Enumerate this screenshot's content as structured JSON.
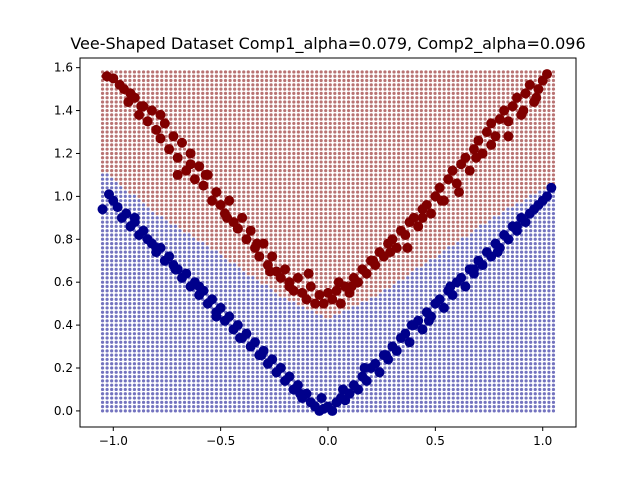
{
  "chart_data": {
    "type": "scatter",
    "title": "Vee-Shaped Dataset Comp1_alpha=0.079, Comp2_alpha=0.096",
    "xlabel": "",
    "ylabel": "",
    "xlim": [
      -1.155,
      1.155
    ],
    "ylim": [
      -0.075,
      1.645
    ],
    "xticks": [
      -1.0,
      -0.5,
      0.0,
      0.5,
      1.0
    ],
    "xtick_labels": [
      "−1.0",
      "−0.5",
      "0.0",
      "0.5",
      "1.0"
    ],
    "yticks": [
      0.0,
      0.2,
      0.4,
      0.6,
      0.8,
      1.0,
      1.2,
      1.4,
      1.6
    ],
    "ytick_labels": [
      "0.0",
      "0.2",
      "0.4",
      "0.6",
      "0.8",
      "1.0",
      "1.2",
      "1.4",
      "1.6"
    ],
    "grid": false,
    "legend": "none",
    "colors": {
      "class_high": "#800000",
      "class_low": "#00008b"
    },
    "decision_boundary": {
      "description_points_x": [
        -1.05,
        -0.8,
        -0.5,
        -0.2,
        0.0,
        0.2,
        0.5,
        0.8,
        1.05
      ],
      "description_points_y": [
        1.12,
        0.92,
        0.73,
        0.52,
        0.43,
        0.52,
        0.72,
        0.92,
        1.06
      ]
    },
    "series": [
      {
        "class": "high",
        "x": [
          -1.03,
          -1.0,
          -0.97,
          -0.95,
          -0.93,
          -0.9,
          -0.88,
          -0.86,
          -0.84,
          -0.82,
          -0.8,
          -0.78,
          -0.76,
          -0.74,
          -0.72,
          -0.7,
          -0.68,
          -0.66,
          -0.64,
          -0.62,
          -0.6,
          -0.58,
          -0.56,
          -0.54,
          -0.52,
          -0.5,
          -0.48,
          -0.46,
          -0.44,
          -0.42,
          -0.4,
          -0.38,
          -0.36,
          -0.34,
          -0.32,
          -0.3,
          -0.28,
          -0.26,
          -0.24,
          -0.22,
          -0.2,
          -0.18,
          -0.16,
          -0.14,
          -0.12,
          -0.1,
          -0.08,
          -0.06,
          -0.04,
          -0.02,
          0.0,
          0.02,
          0.04,
          0.06,
          0.08,
          0.1,
          0.12,
          0.14,
          0.16,
          0.18,
          0.2,
          0.22,
          0.24,
          0.26,
          0.28,
          0.3,
          0.32,
          0.34,
          0.36,
          0.38,
          0.4,
          0.42,
          0.44,
          0.46,
          0.48,
          0.5,
          0.52,
          0.54,
          0.56,
          0.58,
          0.6,
          0.62,
          0.64,
          0.66,
          0.68,
          0.7,
          0.72,
          0.74,
          0.76,
          0.78,
          0.8,
          0.82,
          0.84,
          0.86,
          0.88,
          0.9,
          0.92,
          0.94,
          0.96,
          0.98,
          1.0,
          1.02,
          -0.92,
          -0.87,
          -0.78,
          -0.7,
          -0.64,
          -0.57,
          -0.47,
          -0.42,
          -0.33,
          -0.27,
          -0.18,
          -0.09,
          0.05,
          0.11,
          0.21,
          0.29,
          0.37,
          0.44,
          0.53,
          0.61,
          0.69,
          0.76,
          0.84,
          0.91,
          0.97
        ],
        "y": [
          1.56,
          1.55,
          1.52,
          1.5,
          1.44,
          1.46,
          1.38,
          1.42,
          1.35,
          1.4,
          1.31,
          1.27,
          1.34,
          1.22,
          1.28,
          1.18,
          1.25,
          1.12,
          1.2,
          1.08,
          1.14,
          1.05,
          1.1,
          0.98,
          1.02,
          0.96,
          0.92,
          0.98,
          0.88,
          0.85,
          0.9,
          0.8,
          0.84,
          0.76,
          0.72,
          0.78,
          0.68,
          0.72,
          0.65,
          0.62,
          0.66,
          0.6,
          0.56,
          0.62,
          0.55,
          0.52,
          0.58,
          0.5,
          0.54,
          0.5,
          0.55,
          0.52,
          0.56,
          0.5,
          0.58,
          0.55,
          0.62,
          0.6,
          0.66,
          0.64,
          0.7,
          0.68,
          0.74,
          0.72,
          0.78,
          0.8,
          0.76,
          0.84,
          0.82,
          0.88,
          0.9,
          0.86,
          0.94,
          0.96,
          0.92,
          1.0,
          1.04,
          0.98,
          1.08,
          1.12,
          1.06,
          1.15,
          1.18,
          1.12,
          1.22,
          1.26,
          1.2,
          1.3,
          1.34,
          1.28,
          1.36,
          1.4,
          1.35,
          1.42,
          1.46,
          1.38,
          1.48,
          1.52,
          1.44,
          1.5,
          1.54,
          1.57,
          1.48,
          1.42,
          1.38,
          1.1,
          1.15,
          1.1,
          0.9,
          0.85,
          0.78,
          0.65,
          0.58,
          0.64,
          0.6,
          0.58,
          0.7,
          0.74,
          0.76,
          0.9,
          0.98,
          1.02,
          1.18,
          1.24,
          1.28,
          1.4,
          1.46
        ]
      },
      {
        "class": "low",
        "x": [
          -1.05,
          -1.02,
          -1.0,
          -0.98,
          -0.96,
          -0.94,
          -0.92,
          -0.9,
          -0.88,
          -0.86,
          -0.84,
          -0.82,
          -0.8,
          -0.78,
          -0.76,
          -0.74,
          -0.72,
          -0.7,
          -0.68,
          -0.66,
          -0.64,
          -0.62,
          -0.6,
          -0.58,
          -0.56,
          -0.54,
          -0.52,
          -0.5,
          -0.48,
          -0.46,
          -0.44,
          -0.42,
          -0.4,
          -0.38,
          -0.36,
          -0.34,
          -0.32,
          -0.3,
          -0.28,
          -0.26,
          -0.24,
          -0.22,
          -0.2,
          -0.18,
          -0.16,
          -0.14,
          -0.12,
          -0.1,
          -0.08,
          -0.06,
          -0.04,
          -0.02,
          0.0,
          0.02,
          0.04,
          0.06,
          0.08,
          0.1,
          0.12,
          0.14,
          0.16,
          0.18,
          0.2,
          0.22,
          0.24,
          0.26,
          0.28,
          0.3,
          0.32,
          0.34,
          0.36,
          0.38,
          0.4,
          0.42,
          0.44,
          0.46,
          0.48,
          0.5,
          0.52,
          0.54,
          0.56,
          0.58,
          0.6,
          0.62,
          0.64,
          0.66,
          0.68,
          0.7,
          0.72,
          0.74,
          0.76,
          0.78,
          0.8,
          0.82,
          0.84,
          0.86,
          0.88,
          0.9,
          0.92,
          0.94,
          0.96,
          0.98,
          1.0,
          1.02,
          1.04,
          -0.9,
          -0.8,
          -0.71,
          -0.6,
          -0.52,
          -0.41,
          -0.31,
          -0.22,
          -0.13,
          -0.03,
          0.07,
          0.17,
          0.27,
          0.39,
          0.47,
          0.57,
          0.68,
          0.79,
          0.88
        ],
        "y": [
          0.94,
          1.01,
          0.98,
          0.95,
          0.9,
          0.92,
          0.86,
          0.88,
          0.82,
          0.84,
          0.8,
          0.78,
          0.74,
          0.76,
          0.7,
          0.72,
          0.68,
          0.66,
          0.62,
          0.64,
          0.58,
          0.6,
          0.54,
          0.56,
          0.5,
          0.52,
          0.46,
          0.48,
          0.42,
          0.44,
          0.38,
          0.4,
          0.34,
          0.36,
          0.3,
          0.32,
          0.26,
          0.28,
          0.22,
          0.24,
          0.18,
          0.2,
          0.14,
          0.16,
          0.1,
          0.12,
          0.06,
          0.08,
          0.04,
          0.02,
          0.0,
          0.01,
          0.02,
          0.0,
          0.04,
          0.06,
          0.05,
          0.08,
          0.12,
          0.1,
          0.16,
          0.14,
          0.2,
          0.22,
          0.18,
          0.26,
          0.24,
          0.3,
          0.28,
          0.34,
          0.36,
          0.32,
          0.4,
          0.42,
          0.38,
          0.46,
          0.44,
          0.5,
          0.52,
          0.48,
          0.56,
          0.54,
          0.6,
          0.62,
          0.58,
          0.66,
          0.64,
          0.7,
          0.68,
          0.74,
          0.72,
          0.78,
          0.76,
          0.82,
          0.8,
          0.86,
          0.84,
          0.9,
          0.88,
          0.92,
          0.94,
          0.96,
          0.98,
          1.0,
          1.04,
          0.9,
          0.76,
          0.66,
          0.58,
          0.44,
          0.34,
          0.26,
          0.2,
          0.08,
          0.06,
          0.1,
          0.2,
          0.26,
          0.4,
          0.42,
          0.58,
          0.66,
          0.74,
          0.86
        ]
      }
    ]
  }
}
